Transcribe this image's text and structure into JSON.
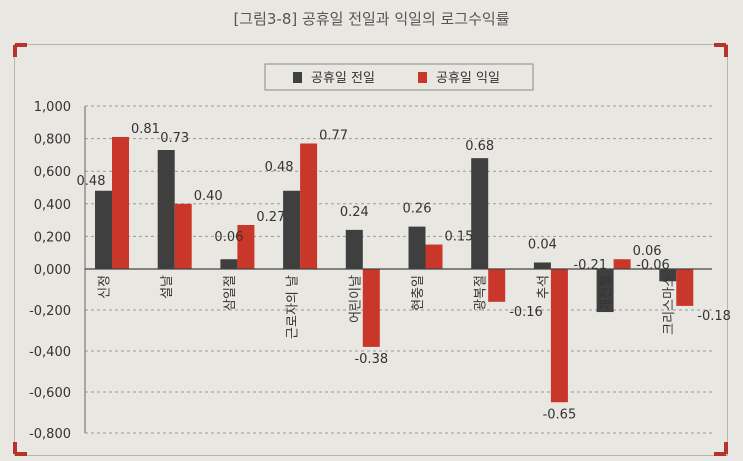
{
  "caption": "[그림3-8] 공휴일 전일과 익일의 로그수익률",
  "chart_data": {
    "type": "bar",
    "categories": [
      "신정",
      "설날",
      "삼일절",
      "근로자의 날",
      "어린이날",
      "현충일",
      "광복절",
      "추석",
      "개천절",
      "크리스마스"
    ],
    "series": [
      {
        "name": "공휴일 전일",
        "values": [
          0.48,
          0.73,
          0.06,
          0.48,
          0.24,
          0.26,
          0.68,
          0.04,
          -0.21,
          -0.06
        ],
        "color": "#3f3f3f"
      },
      {
        "name": "공휴일 익일",
        "values": [
          0.81,
          0.4,
          0.27,
          0.77,
          -0.38,
          0.15,
          -0.16,
          -0.65,
          0.06,
          -0.18
        ],
        "color": "#c9362a"
      }
    ],
    "data_labels": [
      [
        "0.48",
        "0.73",
        "0.06",
        "0.48",
        "0.24",
        "0.26",
        "0.68",
        "0.04",
        "-0.21",
        "-0.06"
      ],
      [
        "0.81",
        "0.40",
        "0.27",
        "0.77",
        "-0.38",
        "0.15",
        "-0.16",
        "-0.65",
        "0.06",
        "-0.18"
      ]
    ],
    "y_ticks": [
      "1,000",
      "0,800",
      "0,600",
      "0,400",
      "0,200",
      "0,000",
      "-0,200",
      "-0,400",
      "-0,600",
      "-0,800"
    ],
    "ylim": [
      -0.8,
      1.0
    ],
    "grid": true,
    "legend_position": "top-center"
  }
}
